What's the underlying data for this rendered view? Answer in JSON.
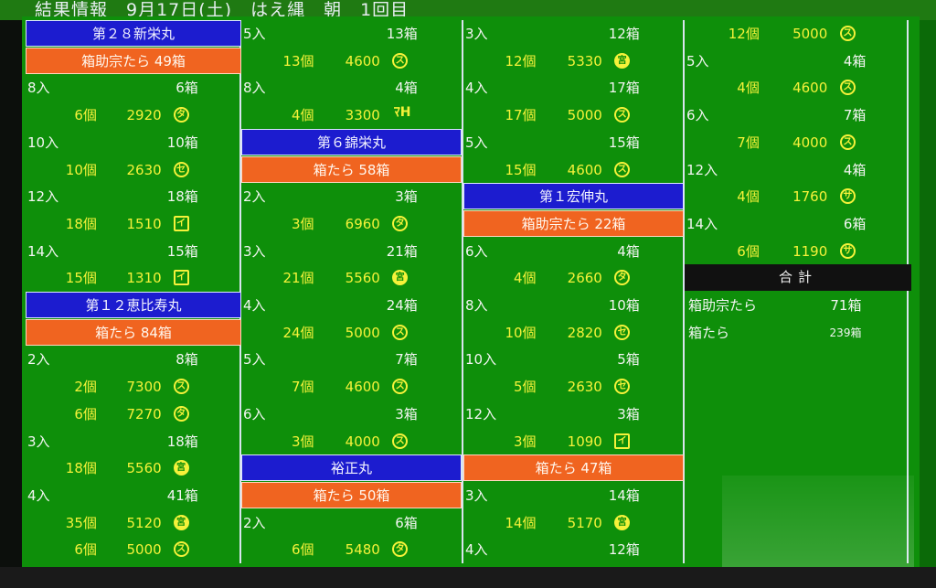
{
  "title": "結果情報　9月17日(土)　はえ縄　朝　1回目",
  "columns": [
    [
      {
        "type": "blue",
        "text": "第２８新栄丸"
      },
      {
        "type": "orange",
        "text": "箱助宗たら 49箱"
      },
      {
        "type": "size",
        "irisu": "8入",
        "boxes": "6箱"
      },
      {
        "type": "price",
        "count": "6個",
        "price": "2920",
        "icon": "タ"
      },
      {
        "type": "size",
        "irisu": "10入",
        "boxes": "10箱"
      },
      {
        "type": "price",
        "count": "10個",
        "price": "2630",
        "icon": "セ"
      },
      {
        "type": "size",
        "irisu": "12入",
        "boxes": "18箱"
      },
      {
        "type": "price",
        "count": "18個",
        "price": "1510",
        "icon": "イ",
        "sq": true
      },
      {
        "type": "size",
        "irisu": "14入",
        "boxes": "15箱"
      },
      {
        "type": "price",
        "count": "15個",
        "price": "1310",
        "icon": "イ",
        "sq": true
      },
      {
        "type": "blue",
        "text": "第１２恵比寿丸"
      },
      {
        "type": "orange",
        "text": "箱たら 84箱"
      },
      {
        "type": "size",
        "irisu": "2入",
        "boxes": "8箱"
      },
      {
        "type": "price",
        "count": "2個",
        "price": "7300",
        "icon": "ス"
      },
      {
        "type": "price",
        "count": "6個",
        "price": "7270",
        "icon": "タ"
      },
      {
        "type": "size",
        "irisu": "3入",
        "boxes": "18箱"
      },
      {
        "type": "price",
        "count": "18個",
        "price": "5560",
        "icon": "宮",
        "filled": true
      },
      {
        "type": "size",
        "irisu": "4入",
        "boxes": "41箱"
      },
      {
        "type": "price",
        "count": "35個",
        "price": "5120",
        "icon": "宮",
        "filled": true
      },
      {
        "type": "price",
        "count": "6個",
        "price": "5000",
        "icon": "ス"
      }
    ],
    [
      {
        "type": "size",
        "irisu": "5入",
        "boxes": "13箱"
      },
      {
        "type": "price",
        "count": "13個",
        "price": "4600",
        "icon": "ス"
      },
      {
        "type": "size",
        "irisu": "8入",
        "boxes": "4箱"
      },
      {
        "type": "price",
        "count": "4個",
        "price": "3300",
        "icon": "ﾏH",
        "txt": true
      },
      {
        "type": "blue",
        "text": "第６錦栄丸"
      },
      {
        "type": "orange",
        "text": "箱たら 58箱"
      },
      {
        "type": "size",
        "irisu": "2入",
        "boxes": "3箱"
      },
      {
        "type": "price",
        "count": "3個",
        "price": "6960",
        "icon": "タ"
      },
      {
        "type": "size",
        "irisu": "3入",
        "boxes": "21箱"
      },
      {
        "type": "price",
        "count": "21個",
        "price": "5560",
        "icon": "宮",
        "filled": true
      },
      {
        "type": "size",
        "irisu": "4入",
        "boxes": "24箱"
      },
      {
        "type": "price",
        "count": "24個",
        "price": "5000",
        "icon": "ス"
      },
      {
        "type": "size",
        "irisu": "5入",
        "boxes": "7箱"
      },
      {
        "type": "price",
        "count": "7個",
        "price": "4600",
        "icon": "ス"
      },
      {
        "type": "size",
        "irisu": "6入",
        "boxes": "3箱"
      },
      {
        "type": "price",
        "count": "3個",
        "price": "4000",
        "icon": "ス"
      },
      {
        "type": "blue",
        "text": "裕正丸"
      },
      {
        "type": "orange",
        "text": "箱たら 50箱"
      },
      {
        "type": "size",
        "irisu": "2入",
        "boxes": "6箱"
      },
      {
        "type": "price",
        "count": "6個",
        "price": "5480",
        "icon": "タ"
      }
    ],
    [
      {
        "type": "size",
        "irisu": "3入",
        "boxes": "12箱"
      },
      {
        "type": "price",
        "count": "12個",
        "price": "5330",
        "icon": "宮",
        "filled": true
      },
      {
        "type": "size",
        "irisu": "4入",
        "boxes": "17箱"
      },
      {
        "type": "price",
        "count": "17個",
        "price": "5000",
        "icon": "ス"
      },
      {
        "type": "size",
        "irisu": "5入",
        "boxes": "15箱"
      },
      {
        "type": "price",
        "count": "15個",
        "price": "4600",
        "icon": "ス"
      },
      {
        "type": "blue",
        "text": "第１宏伸丸"
      },
      {
        "type": "orange",
        "text": "箱助宗たら 22箱"
      },
      {
        "type": "size",
        "irisu": "6入",
        "boxes": "4箱"
      },
      {
        "type": "price",
        "count": "4個",
        "price": "2660",
        "icon": "タ"
      },
      {
        "type": "size",
        "irisu": "8入",
        "boxes": "10箱"
      },
      {
        "type": "price",
        "count": "10個",
        "price": "2820",
        "icon": "セ"
      },
      {
        "type": "size",
        "irisu": "10入",
        "boxes": "5箱"
      },
      {
        "type": "price",
        "count": "5個",
        "price": "2630",
        "icon": "セ"
      },
      {
        "type": "size",
        "irisu": "12入",
        "boxes": "3箱"
      },
      {
        "type": "price",
        "count": "3個",
        "price": "1090",
        "icon": "イ",
        "sq": true
      },
      {
        "type": "orange",
        "text": "箱たら 47箱"
      },
      {
        "type": "size",
        "irisu": "3入",
        "boxes": "14箱"
      },
      {
        "type": "price",
        "count": "14個",
        "price": "5170",
        "icon": "宮",
        "filled": true
      },
      {
        "type": "size",
        "irisu": "4入",
        "boxes": "12箱"
      }
    ],
    [
      {
        "type": "price",
        "count": "12個",
        "price": "5000",
        "icon": "ス"
      },
      {
        "type": "size",
        "irisu": "5入",
        "boxes": "4箱"
      },
      {
        "type": "price",
        "count": "4個",
        "price": "4600",
        "icon": "ス"
      },
      {
        "type": "size",
        "irisu": "6入",
        "boxes": "7箱"
      },
      {
        "type": "price",
        "count": "7個",
        "price": "4000",
        "icon": "ス"
      },
      {
        "type": "size",
        "irisu": "12入",
        "boxes": "4箱"
      },
      {
        "type": "price",
        "count": "4個",
        "price": "1760",
        "icon": "サ"
      },
      {
        "type": "size",
        "irisu": "14入",
        "boxes": "6箱"
      },
      {
        "type": "price",
        "count": "6個",
        "price": "1190",
        "icon": "サ"
      },
      {
        "type": "black",
        "text": "合計"
      },
      {
        "type": "total",
        "label": "箱助宗たら",
        "boxes": "71箱"
      },
      {
        "type": "total",
        "label": "箱たら",
        "boxes": "239箱",
        "small": true
      }
    ]
  ]
}
